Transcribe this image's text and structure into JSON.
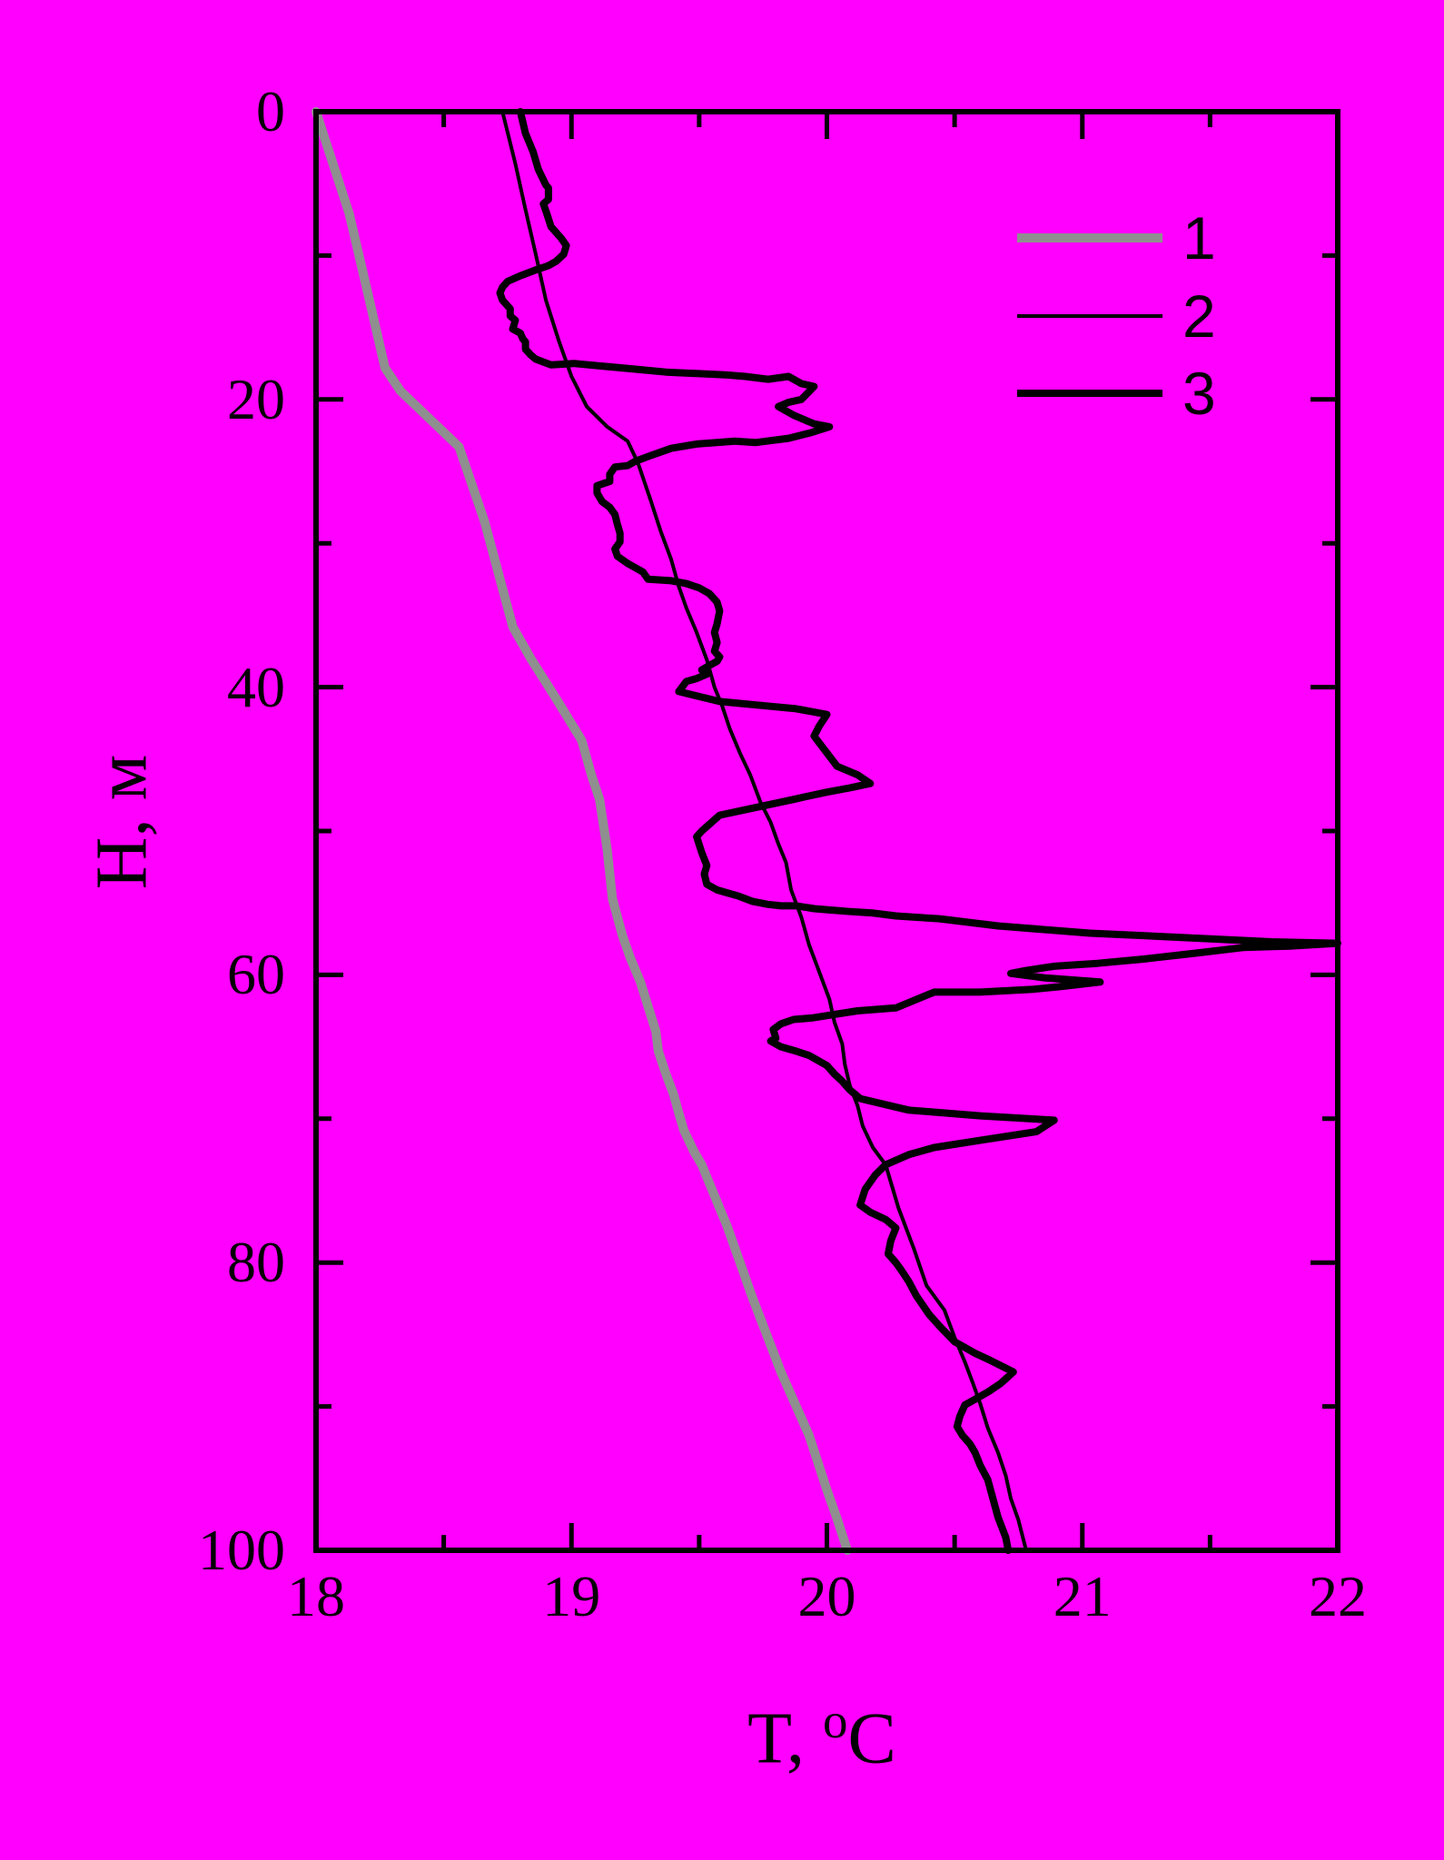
{
  "chart_data": {
    "type": "line",
    "title": "",
    "background_color": "#ff00ff",
    "axis_color": "#000000",
    "xlabel_parts": {
      "base": "T,",
      "sup": "o",
      "unit": "C"
    },
    "ylabel": "H, м",
    "xlim": [
      18,
      22
    ],
    "ylim": [
      0,
      100
    ],
    "y_axis_inverted": true,
    "grid": false,
    "x_ticks": {
      "major": [
        18,
        19,
        20,
        21,
        22
      ],
      "minor": [
        18.5,
        19.5,
        20.5,
        21.5
      ]
    },
    "y_ticks": {
      "major": [
        0,
        20,
        40,
        60,
        80,
        100
      ],
      "minor": [
        10,
        30,
        50,
        70,
        90
      ]
    },
    "x_tick_labels": [
      "18",
      "19",
      "20",
      "21",
      "22"
    ],
    "y_tick_labels": [
      "0",
      "20",
      "40",
      "60",
      "80",
      "100"
    ],
    "legend": {
      "position": "upper right",
      "entries": [
        {
          "label": "1",
          "color": "#8f8f8f",
          "line_width": 10
        },
        {
          "label": "2",
          "color": "#000000",
          "line_width": 4
        },
        {
          "label": "3",
          "color": "#000000",
          "line_width": 8
        }
      ]
    },
    "series": [
      {
        "name": "1",
        "color": "#8f8f8f",
        "line_width": 10,
        "points": [
          [
            18.0,
            0
          ],
          [
            18.13,
            7.1
          ],
          [
            18.2,
            12.4
          ],
          [
            18.27,
            17.8
          ],
          [
            18.33,
            19.4
          ],
          [
            18.43,
            21.1
          ],
          [
            18.56,
            23.3
          ],
          [
            18.66,
            28.5
          ],
          [
            18.77,
            35.8
          ],
          [
            18.84,
            38.0
          ],
          [
            18.94,
            40.8
          ],
          [
            19.04,
            43.7
          ],
          [
            19.08,
            46.2
          ],
          [
            19.11,
            47.8
          ],
          [
            19.14,
            51.3
          ],
          [
            19.16,
            54.7
          ],
          [
            19.2,
            57.3
          ],
          [
            19.23,
            58.8
          ],
          [
            19.27,
            60.5
          ],
          [
            19.3,
            62.2
          ],
          [
            19.33,
            63.9
          ],
          [
            19.34,
            65.3
          ],
          [
            19.37,
            66.9
          ],
          [
            19.4,
            68.3
          ],
          [
            19.42,
            69.6
          ],
          [
            19.44,
            70.8
          ],
          [
            19.48,
            72.3
          ],
          [
            19.51,
            73.2
          ],
          [
            19.61,
            77.5
          ],
          [
            19.71,
            82.5
          ],
          [
            19.82,
            87.6
          ],
          [
            19.93,
            92.0
          ],
          [
            20.0,
            95.8
          ],
          [
            20.04,
            97.8
          ],
          [
            20.08,
            100
          ]
        ]
      },
      {
        "name": "2",
        "color": "#000000",
        "line_width": 4,
        "points": [
          [
            18.73,
            0
          ],
          [
            18.78,
            3.6
          ],
          [
            18.82,
            6.8
          ],
          [
            18.86,
            9.9
          ],
          [
            18.9,
            13.1
          ],
          [
            18.95,
            15.9
          ],
          [
            19.0,
            18.4
          ],
          [
            19.06,
            20.5
          ],
          [
            19.14,
            21.9
          ],
          [
            19.22,
            22.9
          ],
          [
            19.26,
            24.4
          ],
          [
            19.31,
            27.0
          ],
          [
            19.35,
            29.2
          ],
          [
            19.39,
            31.1
          ],
          [
            19.42,
            33.0
          ],
          [
            19.45,
            34.5
          ],
          [
            19.49,
            36.2
          ],
          [
            19.53,
            38.1
          ],
          [
            19.56,
            40.0
          ],
          [
            19.59,
            41.3
          ],
          [
            19.62,
            42.9
          ],
          [
            19.66,
            44.6
          ],
          [
            19.7,
            46.1
          ],
          [
            19.74,
            48.0
          ],
          [
            19.78,
            49.4
          ],
          [
            19.81,
            50.9
          ],
          [
            19.84,
            52.2
          ],
          [
            19.86,
            54.1
          ],
          [
            19.9,
            56.0
          ],
          [
            19.93,
            57.9
          ],
          [
            19.97,
            59.8
          ],
          [
            20.01,
            61.7
          ],
          [
            20.03,
            63.3
          ],
          [
            20.06,
            64.8
          ],
          [
            20.07,
            66.2
          ],
          [
            20.09,
            67.7
          ],
          [
            20.12,
            69.1
          ],
          [
            20.14,
            70.5
          ],
          [
            20.18,
            72.0
          ],
          [
            20.23,
            73.2
          ],
          [
            20.28,
            76.2
          ],
          [
            20.34,
            79.0
          ],
          [
            20.39,
            81.6
          ],
          [
            20.46,
            83.3
          ],
          [
            20.5,
            85.2
          ],
          [
            20.54,
            86.9
          ],
          [
            20.57,
            88.3
          ],
          [
            20.6,
            89.8
          ],
          [
            20.63,
            91.5
          ],
          [
            20.67,
            93.2
          ],
          [
            20.7,
            94.8
          ],
          [
            20.72,
            96.4
          ],
          [
            20.75,
            97.9
          ],
          [
            20.78,
            100
          ]
        ]
      },
      {
        "name": "3",
        "color": "#000000",
        "line_width": 8,
        "points": [
          [
            18.8,
            0
          ],
          [
            18.82,
            1.5
          ],
          [
            18.85,
            2.8
          ],
          [
            18.87,
            4.0
          ],
          [
            18.9,
            5.1
          ],
          [
            18.91,
            5.3
          ],
          [
            18.91,
            6.1
          ],
          [
            18.89,
            6.4
          ],
          [
            18.9,
            6.9
          ],
          [
            18.92,
            8.0
          ],
          [
            18.96,
            8.8
          ],
          [
            18.98,
            9.3
          ],
          [
            18.97,
            9.9
          ],
          [
            18.94,
            10.4
          ],
          [
            18.91,
            10.7
          ],
          [
            18.86,
            11.0
          ],
          [
            18.8,
            11.4
          ],
          [
            18.75,
            11.8
          ],
          [
            18.73,
            12.2
          ],
          [
            18.72,
            12.6
          ],
          [
            18.73,
            13.1
          ],
          [
            18.76,
            13.7
          ],
          [
            18.76,
            14.2
          ],
          [
            18.78,
            14.5
          ],
          [
            18.77,
            15.1
          ],
          [
            18.8,
            15.4
          ],
          [
            18.81,
            15.8
          ],
          [
            18.82,
            16.0
          ],
          [
            18.82,
            16.5
          ],
          [
            18.84,
            16.9
          ],
          [
            18.86,
            17.2
          ],
          [
            18.89,
            17.4
          ],
          [
            18.92,
            17.6
          ],
          [
            19.01,
            17.5
          ],
          [
            19.13,
            17.7
          ],
          [
            19.25,
            17.9
          ],
          [
            19.37,
            18.1
          ],
          [
            19.49,
            18.2
          ],
          [
            19.61,
            18.3
          ],
          [
            19.68,
            18.4
          ],
          [
            19.77,
            18.6
          ],
          [
            19.85,
            18.4
          ],
          [
            19.9,
            18.9
          ],
          [
            19.95,
            19.1
          ],
          [
            19.9,
            20.0
          ],
          [
            19.85,
            20.2
          ],
          [
            19.81,
            20.5
          ],
          [
            19.87,
            21.1
          ],
          [
            19.95,
            21.7
          ],
          [
            20.01,
            21.9
          ],
          [
            19.94,
            22.3
          ],
          [
            19.85,
            22.7
          ],
          [
            19.72,
            23.0
          ],
          [
            19.64,
            22.9
          ],
          [
            19.49,
            23.1
          ],
          [
            19.39,
            23.4
          ],
          [
            19.31,
            23.9
          ],
          [
            19.25,
            24.3
          ],
          [
            19.22,
            24.6
          ],
          [
            19.17,
            24.7
          ],
          [
            19.15,
            25.2
          ],
          [
            19.15,
            25.7
          ],
          [
            19.1,
            26.0
          ],
          [
            19.1,
            26.5
          ],
          [
            19.12,
            27.1
          ],
          [
            19.15,
            27.5
          ],
          [
            19.17,
            28.0
          ],
          [
            19.18,
            28.7
          ],
          [
            19.19,
            29.3
          ],
          [
            19.19,
            29.9
          ],
          [
            19.17,
            30.4
          ],
          [
            19.18,
            30.9
          ],
          [
            19.22,
            31.4
          ],
          [
            19.25,
            31.7
          ],
          [
            19.28,
            32.0
          ],
          [
            19.3,
            32.5
          ],
          [
            19.39,
            32.6
          ],
          [
            19.45,
            32.8
          ],
          [
            19.5,
            33.1
          ],
          [
            19.54,
            33.5
          ],
          [
            19.57,
            34.1
          ],
          [
            19.58,
            34.7
          ],
          [
            19.57,
            35.6
          ],
          [
            19.56,
            36.2
          ],
          [
            19.57,
            36.9
          ],
          [
            19.56,
            37.5
          ],
          [
            19.58,
            37.9
          ],
          [
            19.57,
            38.2
          ],
          [
            19.54,
            38.5
          ],
          [
            19.51,
            38.8
          ],
          [
            19.53,
            39.1
          ],
          [
            19.49,
            39.4
          ],
          [
            19.45,
            39.6
          ],
          [
            19.42,
            40.3
          ],
          [
            19.58,
            41.0
          ],
          [
            19.76,
            41.3
          ],
          [
            19.88,
            41.5
          ],
          [
            19.94,
            41.7
          ],
          [
            20.0,
            41.9
          ],
          [
            19.97,
            42.7
          ],
          [
            19.95,
            43.4
          ],
          [
            20.04,
            45.5
          ],
          [
            20.12,
            46.1
          ],
          [
            20.17,
            46.7
          ],
          [
            20.09,
            47.0
          ],
          [
            20.0,
            47.3
          ],
          [
            19.92,
            47.6
          ],
          [
            19.87,
            47.8
          ],
          [
            19.58,
            48.9
          ],
          [
            19.51,
            50.0
          ],
          [
            19.49,
            50.4
          ],
          [
            19.51,
            51.5
          ],
          [
            19.53,
            52.4
          ],
          [
            19.52,
            53.0
          ],
          [
            19.53,
            53.7
          ],
          [
            19.57,
            54.1
          ],
          [
            19.61,
            54.3
          ],
          [
            19.65,
            54.5
          ],
          [
            19.71,
            54.9
          ],
          [
            19.77,
            55.1
          ],
          [
            19.82,
            55.2
          ],
          [
            19.88,
            55.2
          ],
          [
            19.95,
            55.4
          ],
          [
            20.02,
            55.5
          ],
          [
            20.09,
            55.6
          ],
          [
            20.18,
            55.7
          ],
          [
            20.27,
            55.9
          ],
          [
            20.35,
            56.0
          ],
          [
            20.44,
            56.1
          ],
          [
            20.67,
            56.6
          ],
          [
            21.03,
            57.1
          ],
          [
            21.39,
            57.4
          ],
          [
            21.74,
            57.7
          ],
          [
            22.0,
            57.8
          ],
          [
            21.81,
            58.0
          ],
          [
            21.63,
            58.1
          ],
          [
            21.44,
            58.5
          ],
          [
            21.24,
            58.9
          ],
          [
            21.06,
            59.2
          ],
          [
            20.89,
            59.4
          ],
          [
            20.78,
            59.7
          ],
          [
            20.72,
            59.9
          ],
          [
            20.85,
            60.2
          ],
          [
            21.07,
            60.5
          ],
          [
            20.92,
            60.8
          ],
          [
            20.81,
            61.0
          ],
          [
            20.6,
            61.2
          ],
          [
            20.42,
            61.2
          ],
          [
            20.27,
            62.3
          ],
          [
            20.12,
            62.5
          ],
          [
            20.01,
            62.8
          ],
          [
            19.94,
            63.0
          ],
          [
            19.87,
            63.1
          ],
          [
            19.82,
            63.4
          ],
          [
            19.79,
            63.8
          ],
          [
            19.8,
            64.4
          ],
          [
            19.78,
            64.6
          ],
          [
            19.82,
            65.0
          ],
          [
            19.88,
            65.3
          ],
          [
            19.93,
            65.6
          ],
          [
            19.96,
            65.9
          ],
          [
            20.0,
            66.3
          ],
          [
            20.03,
            66.9
          ],
          [
            20.06,
            67.4
          ],
          [
            20.09,
            68.0
          ],
          [
            20.13,
            68.6
          ],
          [
            20.32,
            69.4
          ],
          [
            20.6,
            69.8
          ],
          [
            20.89,
            70.1
          ],
          [
            20.82,
            70.9
          ],
          [
            20.6,
            71.5
          ],
          [
            20.42,
            72.0
          ],
          [
            20.32,
            72.5
          ],
          [
            20.23,
            73.2
          ],
          [
            20.19,
            73.9
          ],
          [
            20.15,
            74.9
          ],
          [
            20.13,
            76.0
          ],
          [
            20.17,
            76.5
          ],
          [
            20.23,
            77.0
          ],
          [
            20.27,
            77.6
          ],
          [
            20.25,
            78.5
          ],
          [
            20.24,
            79.4
          ],
          [
            20.27,
            80.0
          ],
          [
            20.29,
            80.5
          ],
          [
            20.32,
            81.3
          ],
          [
            20.35,
            82.3
          ],
          [
            20.4,
            83.6
          ],
          [
            20.44,
            84.4
          ],
          [
            20.5,
            85.5
          ],
          [
            20.58,
            86.3
          ],
          [
            20.64,
            86.8
          ],
          [
            20.73,
            87.6
          ],
          [
            20.68,
            88.4
          ],
          [
            20.63,
            89.0
          ],
          [
            20.58,
            89.5
          ],
          [
            20.54,
            89.9
          ],
          [
            20.52,
            90.7
          ],
          [
            20.51,
            91.4
          ],
          [
            20.53,
            92.0
          ],
          [
            20.56,
            92.6
          ],
          [
            20.58,
            93.2
          ],
          [
            20.6,
            94.1
          ],
          [
            20.63,
            95.1
          ],
          [
            20.65,
            96.4
          ],
          [
            20.67,
            97.7
          ],
          [
            20.7,
            99.1
          ],
          [
            20.71,
            100
          ]
        ]
      }
    ]
  }
}
